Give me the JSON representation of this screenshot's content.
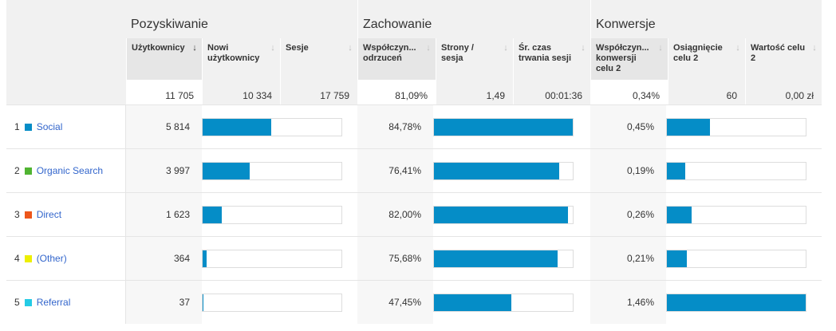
{
  "groups": {
    "acquisition": "Pozyskiwanie",
    "behavior": "Zachowanie",
    "conversions": "Konwersje"
  },
  "columns": [
    "Użytkownicy",
    "Nowi użytkownicy",
    "Sesje",
    "Współczyn... odrzuceń",
    "Strony / sesja",
    "Śr. czas trwania sesji",
    "Współczyn... konwersji celu 2",
    "Osiągnięcie celu 2",
    "Wartość celu 2"
  ],
  "totals": [
    "11 705",
    "10 334",
    "17 759",
    "81,09%",
    "1,49",
    "00:01:36",
    "0,34%",
    "60",
    "0,00 zł"
  ],
  "bar_color": "#058dc7",
  "rows": [
    {
      "rank": "1",
      "name": "Social",
      "color": "#058dc7",
      "users": "5 814",
      "users_frac": 0.497,
      "bounce": "84,78%",
      "bounce_frac": 1.0,
      "conv": "0,45%",
      "conv_frac": 0.308
    },
    {
      "rank": "2",
      "name": "Organic Search",
      "color": "#50b432",
      "users": "3 997",
      "users_frac": 0.341,
      "bounce": "76,41%",
      "bounce_frac": 0.901,
      "conv": "0,19%",
      "conv_frac": 0.13
    },
    {
      "rank": "3",
      "name": "Direct",
      "color": "#ed561b",
      "users": "1 623",
      "users_frac": 0.139,
      "bounce": "82,00%",
      "bounce_frac": 0.967,
      "conv": "0,26%",
      "conv_frac": 0.178
    },
    {
      "rank": "4",
      "name": "(Other)",
      "color": "#edef00",
      "users": "364",
      "users_frac": 0.031,
      "bounce": "75,68%",
      "bounce_frac": 0.893,
      "conv": "0,21%",
      "conv_frac": 0.144
    },
    {
      "rank": "5",
      "name": "Referral",
      "color": "#24cbe5",
      "users": "37",
      "users_frac": 0.003,
      "bounce": "47,45%",
      "bounce_frac": 0.56,
      "conv": "1,46%",
      "conv_frac": 1.0
    }
  ]
}
